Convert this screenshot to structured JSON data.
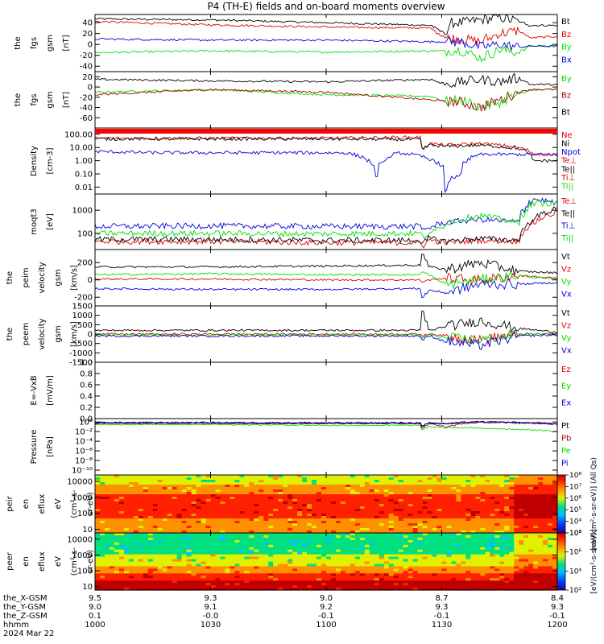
{
  "title": "P4 (TH-E) fields and on-board moments overview",
  "colors": {
    "black": "#000000",
    "red": "#e00000",
    "green": "#00e000",
    "blue": "#0000e0",
    "darkred": "#b00000",
    "wine": "#8b0000"
  },
  "chart_data": [
    {
      "type": "line",
      "ylabel": [
        "the",
        "fgs",
        "gsm",
        "[nT]"
      ],
      "ylim": [
        -50,
        55
      ],
      "yticks": [
        "40",
        "20",
        "0",
        "-20",
        "-40"
      ],
      "yticks_values": [
        40,
        20,
        0,
        -20,
        -40
      ],
      "series": [
        {
          "name": "Bt",
          "color": "#000000",
          "x": [
            1000,
            1030,
            1100,
            1127,
            1131,
            1133,
            1135,
            1140,
            1145,
            1150,
            1153,
            1200
          ],
          "y": [
            47,
            45,
            40,
            35,
            20,
            40,
            40,
            45,
            50,
            42,
            35,
            35
          ]
        },
        {
          "name": "Bz",
          "color": "#e00000",
          "x": [
            1000,
            1030,
            1100,
            1127,
            1131,
            1135,
            1140,
            1145,
            1150,
            1153,
            1200
          ],
          "y": [
            42,
            36,
            32,
            30,
            12,
            10,
            5,
            20,
            25,
            12,
            15
          ]
        },
        {
          "name": "By",
          "color": "#00e000",
          "x": [
            1000,
            1030,
            1100,
            1127,
            1131,
            1135,
            1140,
            1145,
            1150,
            1153,
            1200
          ],
          "y": [
            -15,
            -12,
            -14,
            -12,
            -12,
            -10,
            -25,
            -10,
            -15,
            -3,
            -3
          ]
        },
        {
          "name": "Bx",
          "color": "#0000e0",
          "x": [
            1000,
            1030,
            1100,
            1127,
            1131,
            1135,
            1140,
            1145,
            1150,
            1153,
            1200
          ],
          "y": [
            10,
            8,
            8,
            5,
            5,
            5,
            -5,
            0,
            -5,
            -3,
            -3
          ]
        }
      ]
    },
    {
      "type": "line",
      "ylabel": [
        "the",
        "fgs",
        "gsm",
        "[nT]"
      ],
      "ylim": [
        -80,
        30
      ],
      "yticks": [
        "20",
        "0",
        "-20",
        "-40",
        "-60"
      ],
      "yticks_values": [
        20,
        0,
        -20,
        -40,
        -60
      ],
      "series": [
        {
          "name": "By",
          "color": "#00e000",
          "x": [
            1000,
            1030,
            1100,
            1127,
            1131,
            1135,
            1140,
            1145,
            1150,
            1153,
            1200
          ],
          "y": [
            -10,
            -5,
            -15,
            -18,
            -28,
            -25,
            -40,
            -30,
            -15,
            -5,
            -5
          ]
        },
        {
          "name": "Bz",
          "color": "#b00000",
          "x": [
            1000,
            1030,
            1100,
            1127,
            1131,
            1135,
            1140,
            1145,
            1150,
            1153,
            1200
          ],
          "y": [
            -15,
            -5,
            -10,
            -25,
            -28,
            -30,
            -40,
            -25,
            -10,
            -5,
            -5
          ]
        },
        {
          "name": "Bt",
          "color": "#000000",
          "x": [
            1000,
            1030,
            1100,
            1127,
            1131,
            1135,
            1140,
            1145,
            1150,
            1153,
            1200
          ],
          "y": [
            15,
            12,
            10,
            15,
            5,
            10,
            15,
            10,
            18,
            5,
            5
          ]
        }
      ]
    },
    {
      "type": "line",
      "ylog": true,
      "ylabel": [
        "Density",
        "[cm-3]"
      ],
      "ylim": [
        0.003,
        300
      ],
      "yticks": [
        "100.00",
        "10.00",
        "1.00",
        "0.10",
        "0.01"
      ],
      "yticks_values": [
        100,
        10,
        1,
        0.1,
        0.01
      ],
      "series": [
        {
          "name": "Ne",
          "color": "#e00000",
          "x": [
            1000,
            1030,
            1100,
            1124,
            1125,
            1127,
            1131,
            1140,
            1150,
            1154,
            1200
          ],
          "y": [
            50,
            50,
            50,
            60,
            8,
            20,
            15,
            20,
            10,
            3,
            3
          ]
        },
        {
          "name": "Ni",
          "color": "#000000",
          "x": [
            1000,
            1030,
            1100,
            1124,
            1125,
            1127,
            1131,
            1140,
            1150,
            1154,
            1200
          ],
          "y": [
            45,
            45,
            45,
            40,
            7,
            15,
            12,
            15,
            8,
            1,
            1
          ]
        },
        {
          "name": "Npot",
          "color": "#0000e0",
          "x": [
            1000,
            1015,
            1105,
            1110,
            1113,
            1116,
            1119,
            1131,
            1135,
            1140,
            1200
          ],
          "y": [
            5,
            4,
            4,
            1.5,
            0.05,
            1.5,
            4,
            0.005,
            0.1,
            3,
            3
          ]
        },
        {
          "name": "Te⊥",
          "color": "#e00000",
          "x": [],
          "y": []
        },
        {
          "name": "Te||",
          "color": "#000000",
          "x": [],
          "y": []
        },
        {
          "name": "Ti⊥",
          "color": "#e00000",
          "x": [],
          "y": []
        },
        {
          "name": "Ti||",
          "color": "#00e000",
          "x": [],
          "y": []
        }
      ]
    },
    {
      "type": "line",
      "ylog": true,
      "ylabel": [
        "moqt3",
        "[eV]"
      ],
      "ylim": [
        20,
        5000
      ],
      "yticks": [
        "1000",
        "100"
      ],
      "yticks_values": [
        1000,
        100
      ],
      "series": [
        {
          "name": "Te⊥",
          "color": "#e00000",
          "x": [
            1000,
            1030,
            1100,
            1124,
            1125,
            1127,
            1131,
            1140,
            1150,
            1154,
            1200
          ],
          "y": [
            45,
            45,
            40,
            40,
            30,
            50,
            40,
            50,
            45,
            300,
            800
          ]
        },
        {
          "name": "Te||",
          "color": "#000000",
          "x": [
            1000,
            1030,
            1100,
            1124,
            1125,
            1127,
            1131,
            1140,
            1150,
            1154,
            1200
          ],
          "y": [
            55,
            55,
            50,
            50,
            35,
            60,
            45,
            60,
            50,
            400,
            1200
          ]
        },
        {
          "name": "Ti⊥",
          "color": "#0000e0",
          "x": [
            1000,
            1030,
            1100,
            1124,
            1125,
            1127,
            1131,
            1140,
            1150,
            1154,
            1200
          ],
          "y": [
            200,
            210,
            200,
            200,
            150,
            180,
            300,
            400,
            300,
            3000,
            2000
          ]
        },
        {
          "name": "Ti||",
          "color": "#00e000",
          "x": [
            1000,
            1030,
            1100,
            1124,
            1125,
            1127,
            1131,
            1140,
            1150,
            1154,
            1200
          ],
          "y": [
            100,
            100,
            95,
            100,
            80,
            90,
            250,
            600,
            250,
            2000,
            2000
          ]
        }
      ]
    },
    {
      "type": "line",
      "ylabel": [
        "the",
        "peim",
        "velocity",
        "gsm",
        "[km/s]"
      ],
      "ylim": [
        -300,
        350
      ],
      "yticks": [
        "200",
        "0",
        "-200"
      ],
      "yticks_values": [
        200,
        0,
        -200
      ],
      "series": [
        {
          "name": "Vt",
          "color": "#000000",
          "x": [
            1000,
            1030,
            1100,
            1124,
            1125,
            1127,
            1131,
            1140,
            1150,
            1200
          ],
          "y": [
            150,
            150,
            160,
            170,
            300,
            150,
            120,
            200,
            100,
            80
          ]
        },
        {
          "name": "Vz",
          "color": "#e00000",
          "x": [
            1000,
            1030,
            1100,
            1124,
            1125,
            1127,
            1131,
            1140,
            1150,
            1200
          ],
          "y": [
            10,
            10,
            0,
            0,
            -20,
            0,
            20,
            0,
            50,
            20
          ]
        },
        {
          "name": "Vy",
          "color": "#00e000",
          "x": [
            1000,
            1030,
            1100,
            1124,
            1125,
            1127,
            1131,
            1140,
            1150,
            1200
          ],
          "y": [
            60,
            70,
            60,
            60,
            100,
            50,
            -50,
            0,
            50,
            0
          ]
        },
        {
          "name": "Vx",
          "color": "#0000e0",
          "x": [
            1000,
            1030,
            1100,
            1124,
            1125,
            1127,
            1131,
            1140,
            1150,
            1200
          ],
          "y": [
            -100,
            -110,
            -110,
            -100,
            -200,
            -120,
            -150,
            -50,
            -50,
            -30
          ]
        }
      ]
    },
    {
      "type": "line",
      "ylabel": [
        "the",
        "peem",
        "velocity",
        "gsm",
        "[km/s]"
      ],
      "ylim": [
        -1500,
        1500
      ],
      "yticks": [
        "1500",
        "1000",
        "500",
        "0",
        "-500",
        "-1000",
        "-1500"
      ],
      "yticks_values": [
        1500,
        1000,
        500,
        0,
        -500,
        -1000,
        -1500
      ],
      "series": [
        {
          "name": "Vt",
          "color": "#000000",
          "x": [
            1000,
            1030,
            1100,
            1124,
            1125,
            1127,
            1131,
            1140,
            1150,
            1200
          ],
          "y": [
            200,
            200,
            200,
            200,
            1200,
            200,
            400,
            700,
            300,
            100
          ]
        },
        {
          "name": "Vz",
          "color": "#e00000",
          "x": [
            1000,
            1030,
            1100,
            1124,
            1125,
            1127,
            1131,
            1140,
            1150,
            1200
          ],
          "y": [
            0,
            0,
            0,
            0,
            -100,
            0,
            -100,
            -300,
            0,
            0
          ]
        },
        {
          "name": "Vy",
          "color": "#00e000",
          "x": [
            1000,
            1030,
            1100,
            1124,
            1125,
            1127,
            1131,
            1140,
            1150,
            1200
          ],
          "y": [
            -50,
            -50,
            -50,
            -50,
            -200,
            0,
            -200,
            -300,
            0,
            0
          ]
        },
        {
          "name": "Vx",
          "color": "#0000e0",
          "x": [
            1000,
            1030,
            1100,
            1124,
            1125,
            1127,
            1131,
            1140,
            1150,
            1200
          ],
          "y": [
            -100,
            -100,
            -100,
            -100,
            -300,
            -100,
            -400,
            -600,
            -100,
            -50
          ]
        }
      ]
    },
    {
      "type": "line",
      "ylabel": [
        "E=-VxB",
        "[mV/m]"
      ],
      "ylim": [
        0,
        1
      ],
      "yticks": [
        "1.0",
        "0.8",
        "0.6",
        "0.4",
        "0.2",
        "0.0"
      ],
      "yticks_values": [
        1,
        0.8,
        0.6,
        0.4,
        0.2,
        0
      ],
      "series": [
        {
          "name": "Ez",
          "color": "#e00000",
          "x": [],
          "y": []
        },
        {
          "name": "Ey",
          "color": "#00e000",
          "x": [],
          "y": []
        },
        {
          "name": "Ex",
          "color": "#0000e0",
          "x": [],
          "y": []
        }
      ]
    },
    {
      "type": "line",
      "ylog": true,
      "ylabel": [
        "Pressure",
        "[nPa]"
      ],
      "ylim": [
        1e-11,
        5
      ],
      "yticks": [
        "10⁰",
        "10⁻²",
        "10⁻⁴",
        "10⁻⁶",
        "10⁻⁸",
        "10⁻¹⁰"
      ],
      "yticks_values": [
        1,
        0.01,
        0.0001,
        1e-06,
        1e-08,
        1e-10
      ],
      "series": [
        {
          "name": "Pt",
          "color": "#000000",
          "x": [
            1000,
            1030,
            1100,
            1124,
            1125,
            1127,
            1131,
            1140,
            1150,
            1200
          ],
          "y": [
            0.8,
            0.8,
            0.7,
            0.7,
            0.1,
            0.6,
            0.5,
            1.2,
            0.8,
            0.5
          ]
        },
        {
          "name": "Pb",
          "color": "#b00000",
          "x": [
            1000,
            1030,
            1100,
            1124,
            1125,
            1127,
            1131,
            1140,
            1150,
            1200
          ],
          "y": [
            0.5,
            0.5,
            0.5,
            0.5,
            0.05,
            0.4,
            0.05,
            0.8,
            0.6,
            0.4
          ]
        },
        {
          "name": "Pe",
          "color": "#00e000",
          "x": [
            1000,
            1030,
            1100,
            1124,
            1125,
            1127,
            1131,
            1140,
            1150,
            1200
          ],
          "y": [
            0.3,
            0.3,
            0.2,
            0.2,
            0.02,
            0.1,
            0.08,
            0.05,
            0.03,
            0.01
          ]
        },
        {
          "name": "Pi",
          "color": "#0000e0",
          "x": [
            1000,
            1030,
            1100,
            1124,
            1125,
            1127,
            1131,
            1140,
            1150,
            1200
          ],
          "y": [
            0.6,
            0.6,
            0.5,
            0.5,
            0.2,
            0.5,
            0.4,
            1.0,
            0.7,
            0.3
          ]
        }
      ]
    },
    {
      "type": "heatmap",
      "ylog": true,
      "ylabel": [
        "the",
        "peir",
        "en",
        "eflux",
        "eV",
        "(cm²-s-",
        "sr-eV)"
      ],
      "ylim": [
        6,
        25000
      ],
      "yticks": [
        "10000",
        "1000",
        "100",
        "10"
      ],
      "yticks_values": [
        10000,
        1000,
        100,
        10
      ],
      "colorbar_label": "[eV/(cm²-s-sr-eV)] (All Qs)",
      "colorbar_ticks": [
        "10⁸",
        "10⁷",
        "10⁶",
        "10⁵",
        "10⁴",
        "10³"
      ],
      "colorbar_values": [
        8,
        7,
        6,
        5,
        4,
        3
      ]
    },
    {
      "type": "heatmap",
      "ylog": true,
      "ylabel": [
        "the",
        "peer",
        "en",
        "eflux",
        "eV",
        "(cm²-s-",
        "sr-eV)"
      ],
      "ylim": [
        6,
        25000
      ],
      "yticks": [
        "10000",
        "1000",
        "100",
        "10"
      ],
      "yticks_values": [
        10000,
        1000,
        100,
        10
      ],
      "colorbar_label": "[eV/(cm²-s-sr-eV)]",
      "colorbar_ticks": [
        "10⁸",
        "10⁶",
        "10⁴",
        "10²"
      ],
      "colorbar_values": [
        8,
        6,
        4,
        2
      ]
    }
  ],
  "xaxis": {
    "ticks_hhmm": [
      "1000",
      "1030",
      "1100",
      "1130",
      "1200"
    ],
    "rows": [
      {
        "label": "the_X-GSM",
        "values": [
          "9.5",
          "9.3",
          "9.0",
          "8.7",
          "8.4"
        ]
      },
      {
        "label": "the_Y-GSM",
        "values": [
          "9.0",
          "9.1",
          "9.2",
          "9.3",
          "9.3"
        ]
      },
      {
        "label": "the_Z-GSM",
        "values": [
          "0.1",
          "-0.0",
          "-0.1",
          "-0.1",
          "-0.1"
        ]
      },
      {
        "label": "hhmm",
        "values": [
          "1000",
          "1030",
          "1100",
          "1130",
          "1200"
        ]
      }
    ],
    "date": "2024 Mar 22"
  }
}
